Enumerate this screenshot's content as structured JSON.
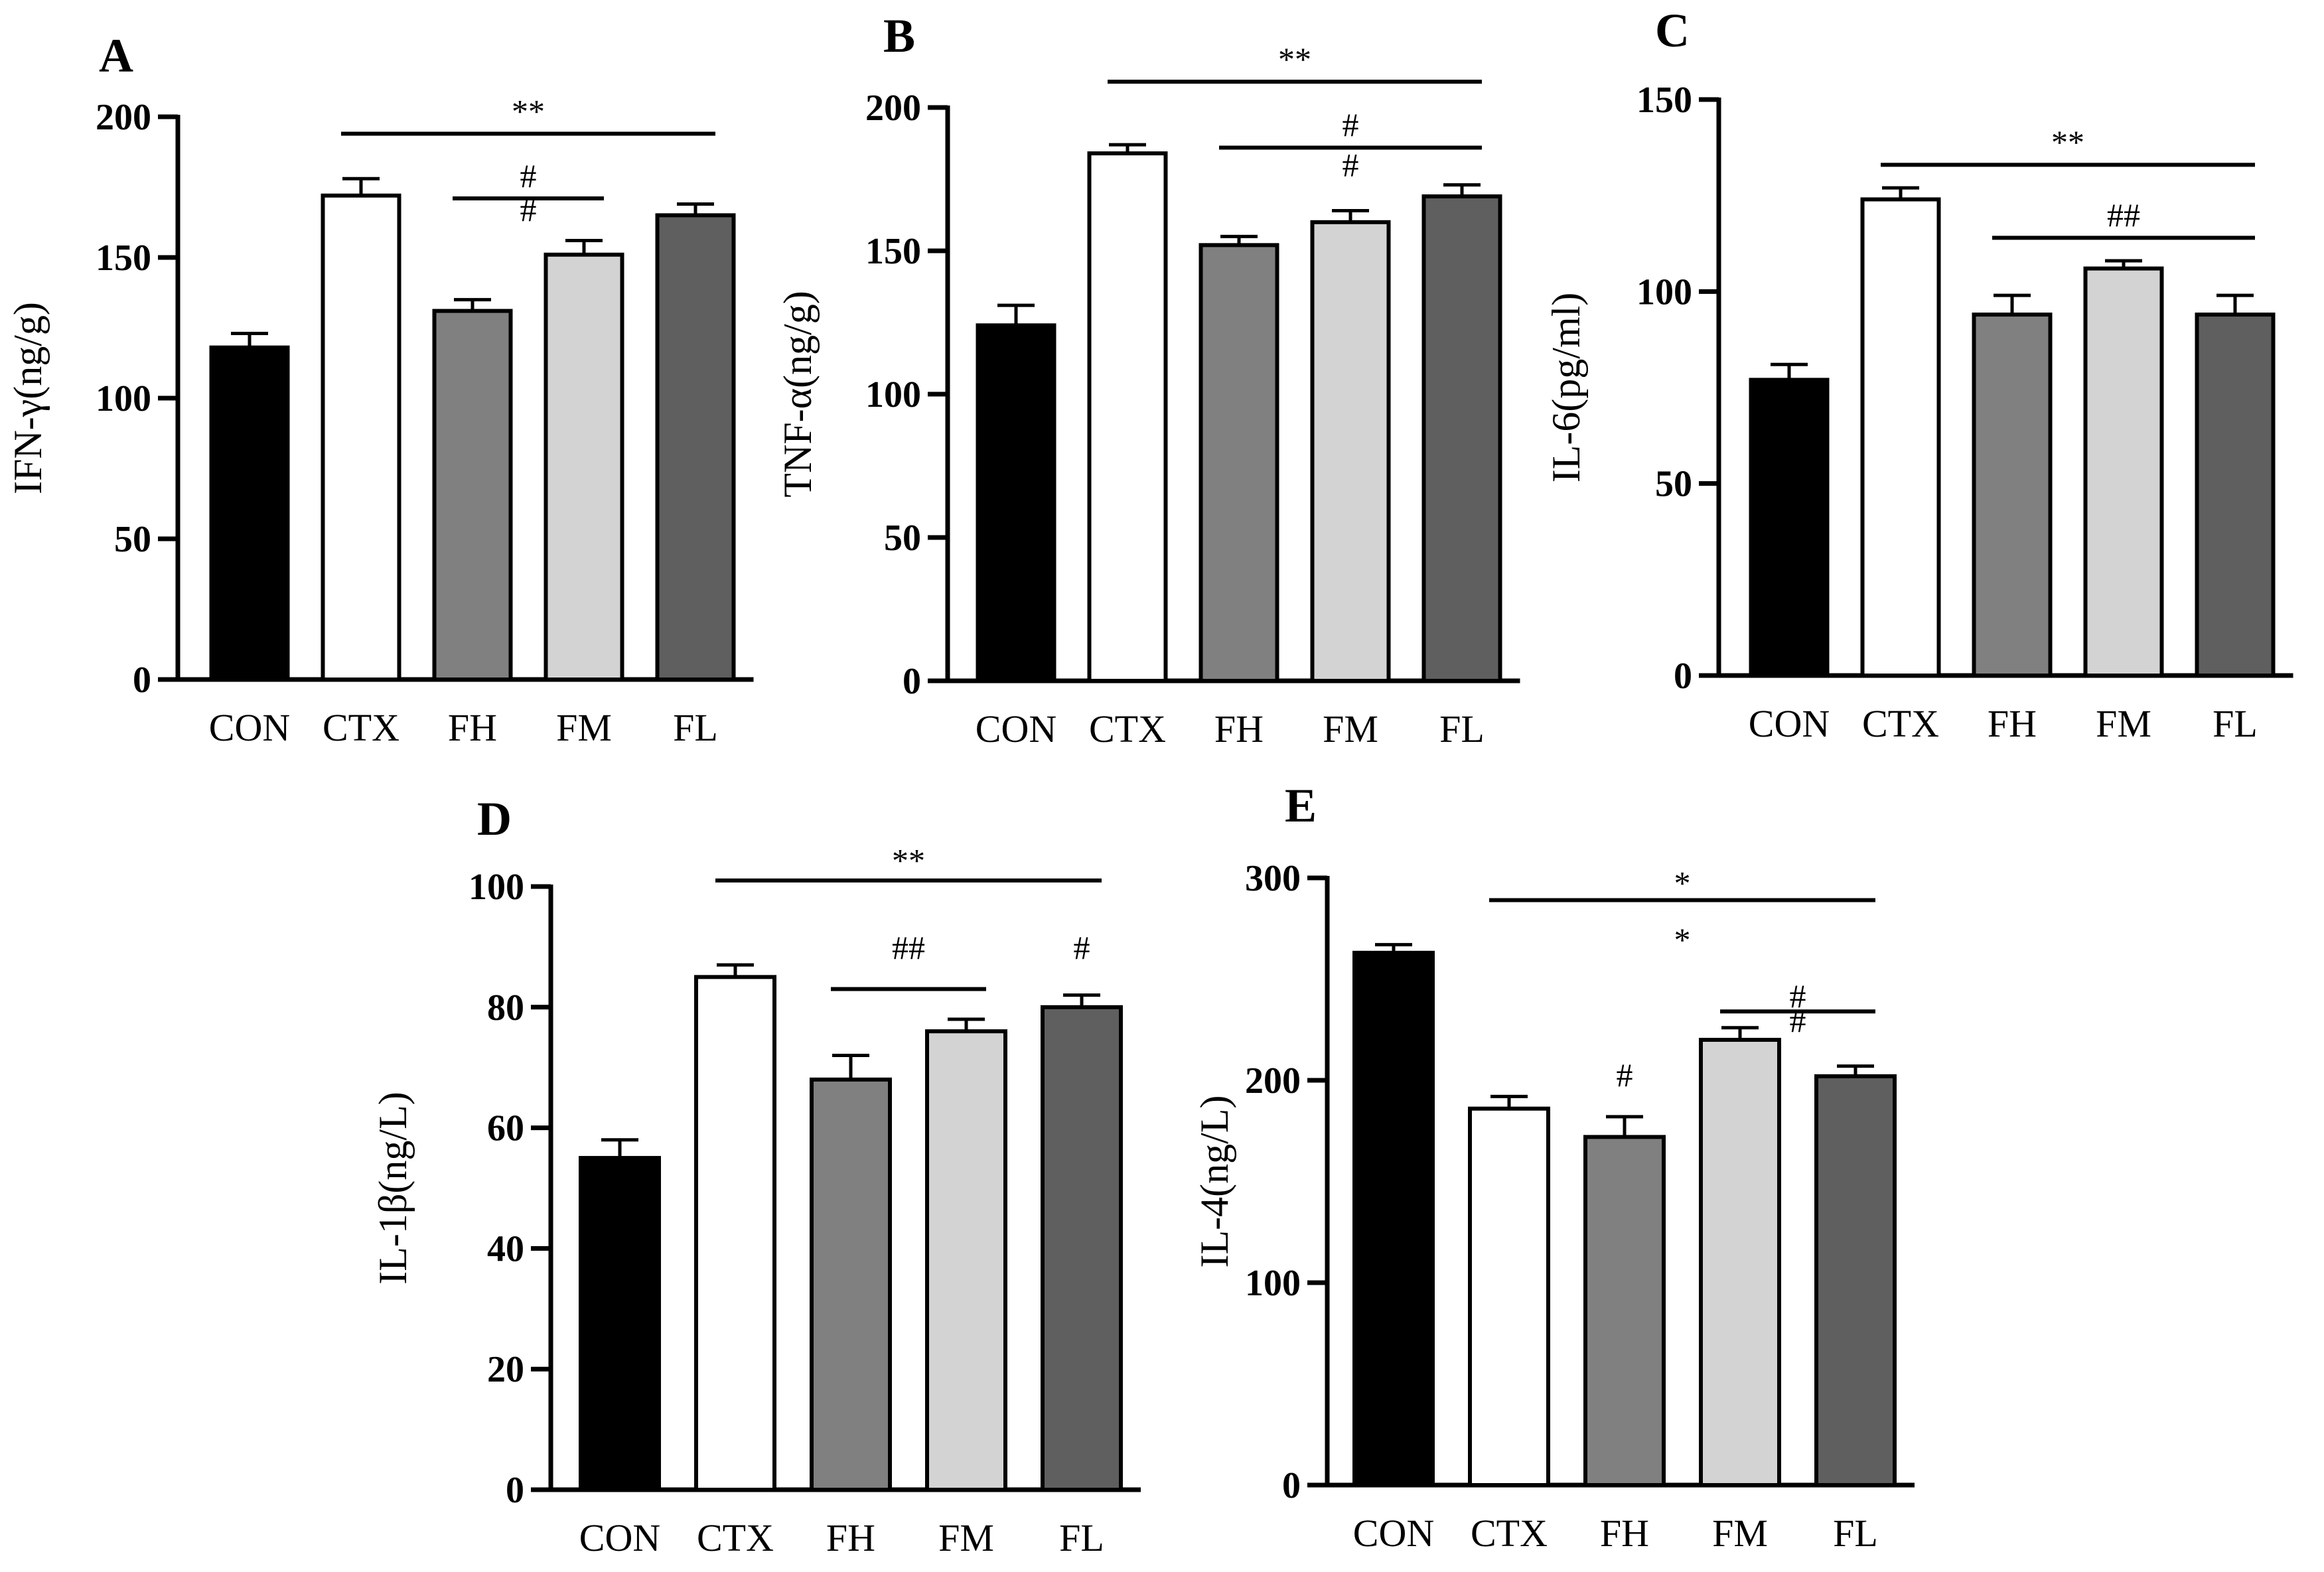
{
  "chart_data": [
    {
      "panel": "A",
      "type": "bar",
      "ylabel": "IFN-γ(ng/g)",
      "categories": [
        "CON",
        "CTX",
        "FH",
        "FM",
        "FL"
      ],
      "values": [
        118,
        172,
        131,
        151,
        165
      ],
      "errors": [
        5,
        6,
        4,
        5,
        4
      ],
      "colors": [
        "#000000",
        "#ffffff",
        "#808080",
        "#d3d3d3",
        "#5f5f5f"
      ],
      "ylim": [
        0,
        200
      ],
      "yticks": [
        0,
        50,
        100,
        150,
        200
      ],
      "annotations": [
        {
          "label": "**",
          "from": 1,
          "to": 4,
          "y": 194,
          "label_y": 198
        },
        {
          "label": "#",
          "from": 2,
          "to": 3,
          "y": 171,
          "label_y": 175
        },
        {
          "label": "#",
          "label_at": 2.5,
          "label_y": 163
        }
      ]
    },
    {
      "panel": "B",
      "type": "bar",
      "ylabel": "TNF-α(ng/g)",
      "categories": [
        "CON",
        "CTX",
        "FH",
        "FM",
        "FL"
      ],
      "values": [
        124,
        184,
        152,
        160,
        169
      ],
      "errors": [
        7,
        3,
        3,
        4,
        4
      ],
      "colors": [
        "#000000",
        "#ffffff",
        "#808080",
        "#d3d3d3",
        "#5f5f5f"
      ],
      "ylim": [
        0,
        200
      ],
      "yticks": [
        0,
        50,
        100,
        150,
        200
      ],
      "annotations": [
        {
          "label": "**",
          "from": 1,
          "to": 4,
          "y": 209,
          "label_y": 213
        },
        {
          "label": "#",
          "from": 2,
          "to": 4,
          "y": 186,
          "label_y": 190
        },
        {
          "label": "#",
          "label_at": 3,
          "label_y": 176
        }
      ]
    },
    {
      "panel": "C",
      "type": "bar",
      "ylabel": "IL-6(pg/ml)",
      "categories": [
        "CON",
        "CTX",
        "FH",
        "FM",
        "FL"
      ],
      "values": [
        77,
        124,
        94,
        106,
        94
      ],
      "errors": [
        4,
        3,
        5,
        2,
        5
      ],
      "colors": [
        "#000000",
        "#ffffff",
        "#808080",
        "#d3d3d3",
        "#5f5f5f"
      ],
      "ylim": [
        0,
        150
      ],
      "yticks": [
        0,
        50,
        100,
        150
      ],
      "annotations": [
        {
          "label": "**",
          "from": 1,
          "to": 4,
          "y": 133,
          "label_y": 136
        },
        {
          "label": "##",
          "from": 2,
          "to": 4,
          "y": 114,
          "label_y": 117
        }
      ]
    },
    {
      "panel": "D",
      "type": "bar",
      "ylabel": "IL-1β(ng/L)",
      "categories": [
        "CON",
        "CTX",
        "FH",
        "FM",
        "FL"
      ],
      "values": [
        55,
        85,
        68,
        76,
        80
      ],
      "errors": [
        3,
        2,
        4,
        2,
        2
      ],
      "colors": [
        "#000000",
        "#ffffff",
        "#808080",
        "#d3d3d3",
        "#5f5f5f"
      ],
      "ylim": [
        0,
        100
      ],
      "yticks": [
        0,
        20,
        40,
        60,
        80,
        100
      ],
      "annotations": [
        {
          "label": "**",
          "from": 1,
          "to": 4,
          "y": 101,
          "label_y": 102.5
        },
        {
          "label": "##",
          "from": 2,
          "to": 3,
          "y": 83,
          "label_y": 88
        },
        {
          "label": "#",
          "label_at": 4,
          "label_y": 88
        }
      ]
    },
    {
      "panel": "E",
      "type": "bar",
      "ylabel": "IL-4(ng/L)",
      "categories": [
        "CON",
        "CTX",
        "FH",
        "FM",
        "FL"
      ],
      "values": [
        263,
        186,
        172,
        220,
        202
      ],
      "errors": [
        4,
        6,
        10,
        6,
        5
      ],
      "colors": [
        "#000000",
        "#ffffff",
        "#808080",
        "#d3d3d3",
        "#5f5f5f"
      ],
      "ylim": [
        0,
        300
      ],
      "yticks": [
        0,
        100,
        200,
        300
      ],
      "annotations": [
        {
          "label": "*",
          "from": 1,
          "to": 4,
          "y": 289,
          "label_y": 292
        },
        {
          "label": "*",
          "label_at": 2.5,
          "label_y": 264
        },
        {
          "label": "#",
          "from": 3,
          "to": 4,
          "y": 234,
          "label_y": 236
        },
        {
          "label": "#",
          "label_at": 3.5,
          "label_y": 224
        },
        {
          "label": "#",
          "label_at": 2,
          "label_y": 197
        }
      ]
    }
  ]
}
